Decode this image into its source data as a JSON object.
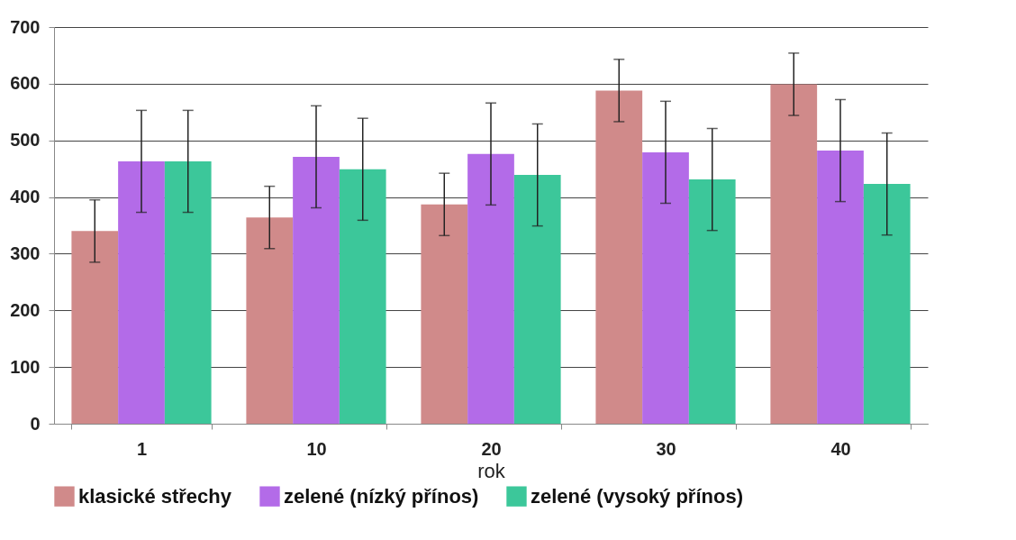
{
  "chart_data": {
    "type": "bar",
    "xlabel": "rok",
    "categories": [
      "1",
      "10",
      "20",
      "30",
      "40"
    ],
    "series": [
      {
        "name": "klasické střechy",
        "color": "#d08a8a",
        "values": [
          340,
          364,
          387,
          588,
          599
        ],
        "errors": [
          55,
          55,
          55,
          55,
          55
        ]
      },
      {
        "name": "zelené (nízký přínos)",
        "color": "#b36be8",
        "values": [
          463,
          471,
          476,
          479,
          482
        ],
        "errors": [
          90,
          90,
          90,
          90,
          90
        ]
      },
      {
        "name": "zelené (vysoký přínos)",
        "color": "#3cc79a",
        "values": [
          463,
          449,
          439,
          431,
          423
        ],
        "errors": [
          90,
          90,
          90,
          90,
          90
        ]
      }
    ],
    "ylim": [
      0,
      700
    ],
    "yticks": [
      0,
      100,
      200,
      300,
      400,
      500,
      600,
      700
    ],
    "grid": "y",
    "legend": "bottom"
  }
}
